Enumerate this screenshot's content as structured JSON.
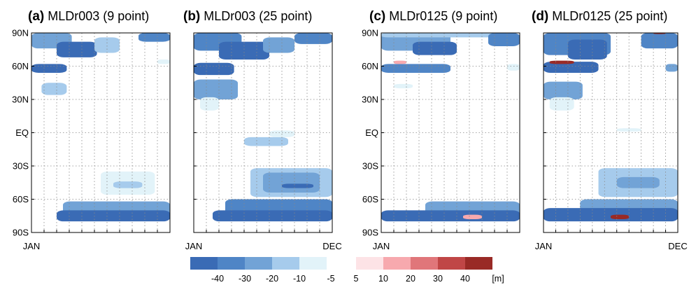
{
  "chart_data": {
    "type": "heatmap",
    "y_tick_labels": [
      "90N",
      "60N",
      "30N",
      "EQ",
      "30S",
      "60S",
      "90S"
    ],
    "y_tick_values": [
      90,
      60,
      30,
      0,
      -30,
      -60,
      -90
    ],
    "ylim": [
      -90,
      90
    ],
    "xlim": [
      1,
      12
    ],
    "colorbar": {
      "labels": [
        "-40",
        "-30",
        "-20",
        "-10",
        "-5",
        "5",
        "10",
        "20",
        "30",
        "40",
        "[m]"
      ],
      "negative_colors": [
        "#3a6bb5",
        "#4f85c6",
        "#72a3d6",
        "#a6cbec",
        "#e2f3f9"
      ],
      "positive_colors": [
        "#fde3e6",
        "#f7a9ae",
        "#e0767a",
        "#c04646",
        "#992a26"
      ]
    },
    "panels": [
      {
        "tag": "(a)",
        "title": "MLDr003 (9 point)",
        "x_tick_labels": [
          "JAN",
          ""
        ],
        "regions": [
          {
            "lat": [
              76,
              90
            ],
            "month": [
              1,
              4.2
            ],
            "value": -20
          },
          {
            "lat": [
              68,
              82
            ],
            "month": [
              3,
              6.2
            ],
            "value": -40
          },
          {
            "lat": [
              72,
              86
            ],
            "month": [
              6,
              8
            ],
            "value": -10
          },
          {
            "lat": [
              82,
              90
            ],
            "month": [
              9.5,
              12
            ],
            "value": -30
          },
          {
            "lat": [
              54,
              62
            ],
            "month": [
              1,
              3.8
            ],
            "value": -40
          },
          {
            "lat": [
              34,
              45
            ],
            "month": [
              1.8,
              3.8
            ],
            "value": -10
          },
          {
            "lat": [
              62,
              66
            ],
            "month": [
              11,
              12
            ],
            "value": -5
          },
          {
            "lat": [
              -56,
              -35
            ],
            "month": [
              6.5,
              10.8
            ],
            "value": -5
          },
          {
            "lat": [
              -50,
              -44
            ],
            "month": [
              7.5,
              9.8
            ],
            "value": -10
          },
          {
            "lat": [
              -74,
              -62
            ],
            "month": [
              3.5,
              12
            ],
            "value": -20
          },
          {
            "lat": [
              -80,
              -70
            ],
            "month": [
              3,
              12
            ],
            "value": -40
          }
        ]
      },
      {
        "tag": "(b)",
        "title": "MLDr003 (25 point)",
        "x_tick_labels": [
          "JAN",
          "DEC"
        ],
        "regions": [
          {
            "lat": [
              74,
              90
            ],
            "month": [
              1,
              4.8
            ],
            "value": -30
          },
          {
            "lat": [
              66,
              82
            ],
            "month": [
              3,
              7
            ],
            "value": -40
          },
          {
            "lat": [
              72,
              86
            ],
            "month": [
              6.5,
              9
            ],
            "value": -20
          },
          {
            "lat": [
              80,
              90
            ],
            "month": [
              9,
              12
            ],
            "value": -30
          },
          {
            "lat": [
              52,
              63
            ],
            "month": [
              1,
              4.2
            ],
            "value": -40
          },
          {
            "lat": [
              30,
              48
            ],
            "month": [
              1,
              4.5
            ],
            "value": -20
          },
          {
            "lat": [
              20,
              32
            ],
            "month": [
              1.5,
              3
            ],
            "value": -5
          },
          {
            "lat": [
              -12,
              -4
            ],
            "month": [
              5,
              8.5
            ],
            "value": -10
          },
          {
            "lat": [
              -4,
              2
            ],
            "month": [
              7,
              9
            ],
            "value": -5
          },
          {
            "lat": [
              -58,
              -32
            ],
            "month": [
              5.5,
              12
            ],
            "value": -10
          },
          {
            "lat": [
              -54,
              -36
            ],
            "month": [
              6.5,
              11
            ],
            "value": -20
          },
          {
            "lat": [
              -50,
              -46
            ],
            "month": [
              8,
              10.5
            ],
            "value": -40
          },
          {
            "lat": [
              -76,
              -60
            ],
            "month": [
              3.5,
              12
            ],
            "value": -30
          },
          {
            "lat": [
              -80,
              -70
            ],
            "month": [
              2.5,
              12
            ],
            "value": -40
          }
        ]
      },
      {
        "tag": "(c)",
        "title": "MLDr0125 (9 point)",
        "x_tick_labels": [
          "JAN",
          ""
        ],
        "regions": [
          {
            "lat": [
              74,
              90
            ],
            "month": [
              1,
              6.5
            ],
            "value": -20
          },
          {
            "lat": [
              70,
              82
            ],
            "month": [
              3.5,
              7
            ],
            "value": -40
          },
          {
            "lat": [
              86,
              90
            ],
            "month": [
              1,
              10
            ],
            "value": -10
          },
          {
            "lat": [
              88,
              90
            ],
            "month": [
              10.5,
              11.5
            ],
            "value": 30
          },
          {
            "lat": [
              78,
              90
            ],
            "month": [
              9.5,
              12
            ],
            "value": -30
          },
          {
            "lat": [
              54,
              62
            ],
            "month": [
              1,
              6.5
            ],
            "value": -30
          },
          {
            "lat": [
              62,
              65
            ],
            "month": [
              2,
              3
            ],
            "value": 10
          },
          {
            "lat": [
              40,
              44
            ],
            "month": [
              2,
              3.5
            ],
            "value": -5
          },
          {
            "lat": [
              56,
              62
            ],
            "month": [
              11,
              12
            ],
            "value": -5
          },
          {
            "lat": [
              -74,
              -62
            ],
            "month": [
              4.5,
              12
            ],
            "value": -20
          },
          {
            "lat": [
              -80,
              -70
            ],
            "month": [
              1,
              12
            ],
            "value": -40
          },
          {
            "lat": [
              -78,
              -74
            ],
            "month": [
              7.5,
              9
            ],
            "value": 10
          }
        ]
      },
      {
        "tag": "(d)",
        "title": "MLDr0125 (25 point)",
        "x_tick_labels": [
          "JAN",
          "DEC"
        ],
        "regions": [
          {
            "lat": [
              70,
              90
            ],
            "month": [
              1,
              6.5
            ],
            "value": -30
          },
          {
            "lat": [
              66,
              84
            ],
            "month": [
              3,
              6.2
            ],
            "value": -40
          },
          {
            "lat": [
              76,
              90
            ],
            "month": [
              9,
              12
            ],
            "value": -30
          },
          {
            "lat": [
              89,
              90
            ],
            "month": [
              10,
              11
            ],
            "value": 40
          },
          {
            "lat": [
              54,
              64
            ],
            "month": [
              1,
              5.5
            ],
            "value": -40
          },
          {
            "lat": [
              62,
              65
            ],
            "month": [
              1.5,
              3.5
            ],
            "value": 40
          },
          {
            "lat": [
              55,
              62
            ],
            "month": [
              11,
              12
            ],
            "value": -20
          },
          {
            "lat": [
              30,
              46
            ],
            "month": [
              1,
              4.2
            ],
            "value": -20
          },
          {
            "lat": [
              20,
              32
            ],
            "month": [
              1.5,
              3.5
            ],
            "value": -5
          },
          {
            "lat": [
              1,
              4
            ],
            "month": [
              7,
              9
            ],
            "value": -5
          },
          {
            "lat": [
              -58,
              -32
            ],
            "month": [
              5.5,
              12
            ],
            "value": -10
          },
          {
            "lat": [
              -50,
              -40
            ],
            "month": [
              7,
              10.5
            ],
            "value": -20
          },
          {
            "lat": [
              -72,
              -60
            ],
            "month": [
              4,
              12
            ],
            "value": -20
          },
          {
            "lat": [
              -80,
              -68
            ],
            "month": [
              1,
              12
            ],
            "value": -40
          },
          {
            "lat": [
              -78,
              -74
            ],
            "month": [
              6.5,
              8
            ],
            "value": 40
          }
        ]
      }
    ]
  }
}
